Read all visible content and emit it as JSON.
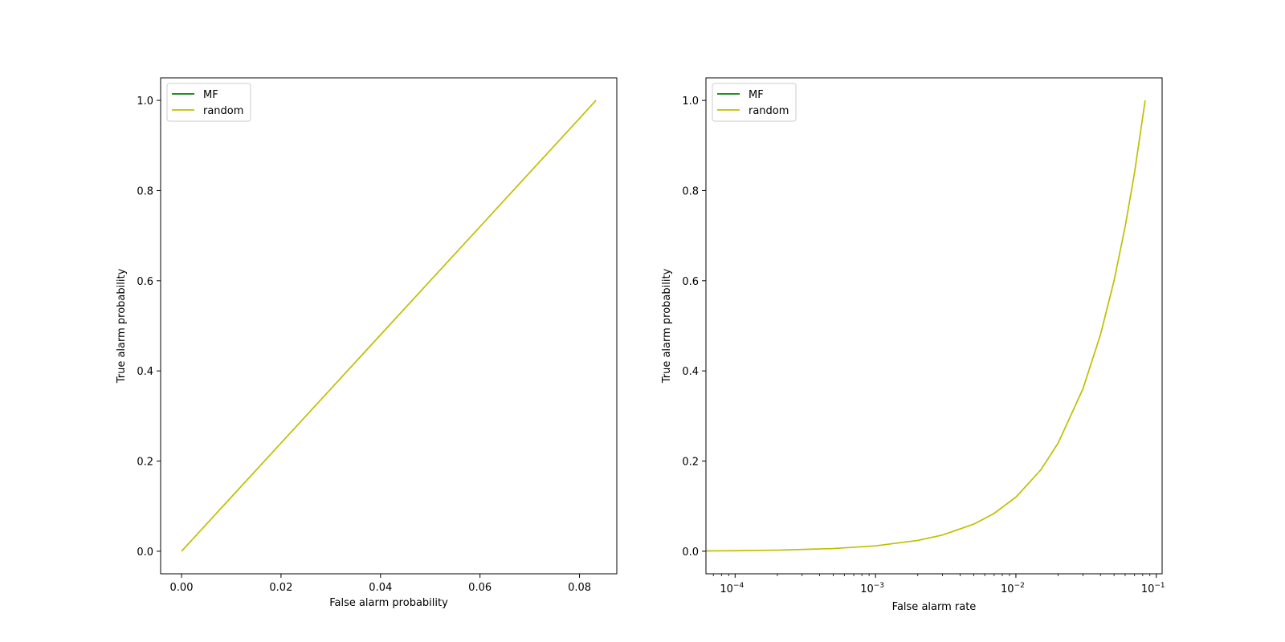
{
  "colors": {
    "mf": "#008000",
    "random": "#bfbf00",
    "axes": "#000000",
    "legend_border": "#cccccc"
  },
  "chart_data": [
    {
      "type": "line",
      "xlabel": "False alarm probability",
      "ylabel": "True alarm probability",
      "xscale": "linear",
      "yscale": "linear",
      "xlim": [
        -0.0042,
        0.0875
      ],
      "ylim": [
        -0.05,
        1.05
      ],
      "xticks": [
        {
          "value": 0.0,
          "label": "0.00"
        },
        {
          "value": 0.02,
          "label": "0.02"
        },
        {
          "value": 0.04,
          "label": "0.04"
        },
        {
          "value": 0.06,
          "label": "0.06"
        },
        {
          "value": 0.08,
          "label": "0.08"
        }
      ],
      "yticks": [
        {
          "value": 0.0,
          "label": "0.0"
        },
        {
          "value": 0.2,
          "label": "0.2"
        },
        {
          "value": 0.4,
          "label": "0.4"
        },
        {
          "value": 0.6,
          "label": "0.6"
        },
        {
          "value": 0.8,
          "label": "0.8"
        },
        {
          "value": 1.0,
          "label": "1.0"
        }
      ],
      "grid": false,
      "legend": "upper left",
      "series": [
        {
          "name": "MF",
          "color": "#008000",
          "x": [],
          "y": []
        },
        {
          "name": "random",
          "color": "#bfbf00",
          "x": [
            0.0,
            0.01,
            0.02,
            0.03,
            0.04,
            0.05,
            0.06,
            0.07,
            0.08,
            0.0833
          ],
          "y": [
            0.0,
            0.12,
            0.24,
            0.36,
            0.48,
            0.6,
            0.72,
            0.84,
            0.96,
            1.0
          ]
        }
      ]
    },
    {
      "type": "line",
      "xlabel": "False alarm rate",
      "ylabel": "True alarm probability",
      "xscale": "log",
      "yscale": "linear",
      "xlim": [
        6.2e-05,
        0.11
      ],
      "ylim": [
        -0.05,
        1.05
      ],
      "xticks": [
        {
          "value": 0.0001,
          "base": "10",
          "exp": "−4"
        },
        {
          "value": 0.001,
          "base": "10",
          "exp": "−3"
        },
        {
          "value": 0.01,
          "base": "10",
          "exp": "−2"
        },
        {
          "value": 0.1,
          "base": "10",
          "exp": "−1"
        }
      ],
      "yticks": [
        {
          "value": 0.0,
          "label": "0.0"
        },
        {
          "value": 0.2,
          "label": "0.2"
        },
        {
          "value": 0.4,
          "label": "0.4"
        },
        {
          "value": 0.6,
          "label": "0.6"
        },
        {
          "value": 0.8,
          "label": "0.8"
        },
        {
          "value": 1.0,
          "label": "1.0"
        }
      ],
      "grid": false,
      "legend": "upper left",
      "series": [
        {
          "name": "MF",
          "color": "#008000",
          "x": [],
          "y": []
        },
        {
          "name": "random",
          "color": "#bfbf00",
          "x": [
            6.25e-05,
            0.0001,
            0.0002,
            0.0005,
            0.001,
            0.002,
            0.003,
            0.005,
            0.007,
            0.01,
            0.015,
            0.02,
            0.03,
            0.04,
            0.05,
            0.06,
            0.07,
            0.0833
          ],
          "y": [
            0.00075,
            0.0012,
            0.0024,
            0.006,
            0.012,
            0.024,
            0.036,
            0.06,
            0.084,
            0.12,
            0.18,
            0.24,
            0.36,
            0.48,
            0.6,
            0.72,
            0.84,
            1.0
          ]
        }
      ]
    }
  ]
}
